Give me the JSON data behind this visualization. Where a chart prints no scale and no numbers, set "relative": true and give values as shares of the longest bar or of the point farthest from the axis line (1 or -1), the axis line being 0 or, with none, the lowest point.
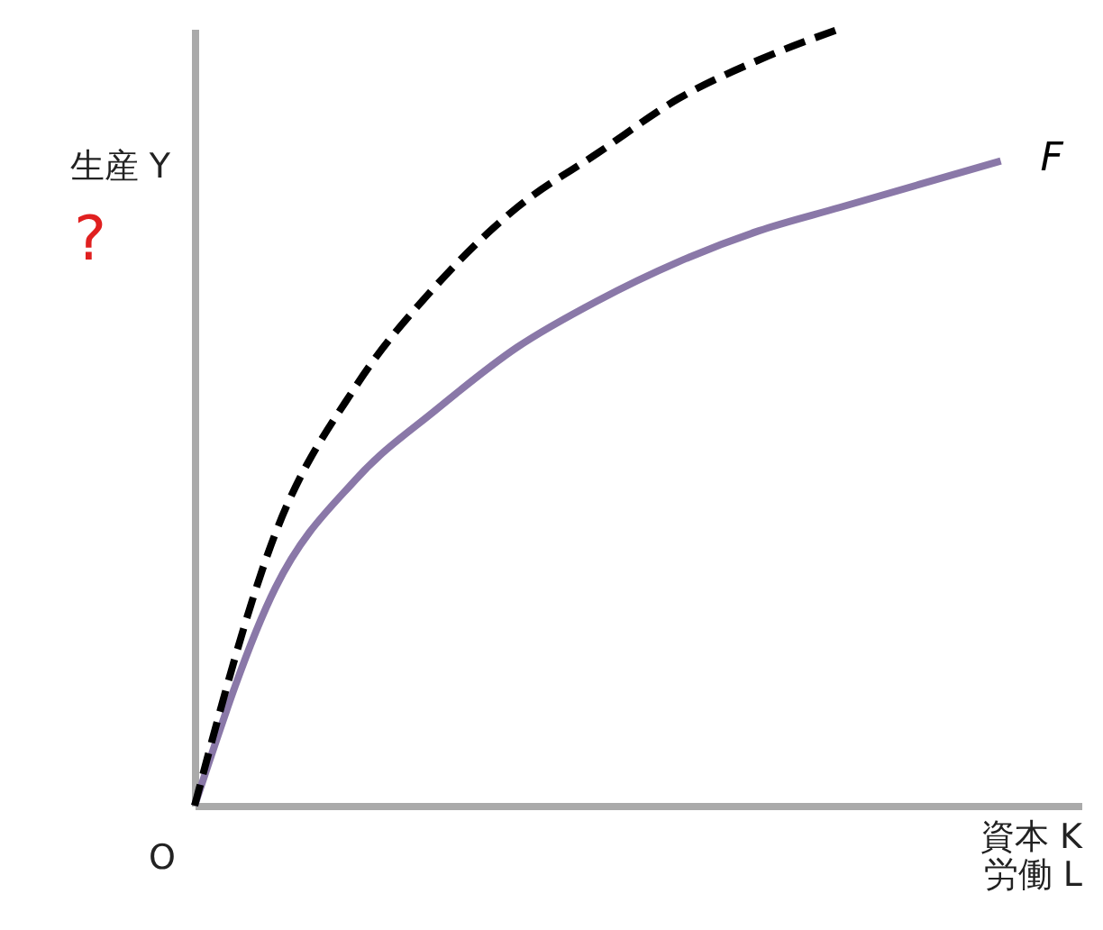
{
  "chart_data": {
    "type": "line",
    "relative": true,
    "ylabel": "生産 Y",
    "xlabel": "資本 K\n労働 L",
    "categories": [
      null,
      null,
      null,
      null,
      null,
      null,
      null,
      null,
      null,
      null,
      null
    ],
    "series": [
      {
        "name": "F",
        "color": "#8a78a8",
        "line_style": "solid",
        "values": [
          0,
          0.28,
          0.42,
          0.51,
          0.59,
          0.65,
          0.7,
          0.74,
          0.77,
          0.8,
          0.83
        ]
      },
      {
        "color": "#000000",
        "line_style": "dashed",
        "values": [
          0,
          0.35,
          0.54,
          0.67,
          0.77,
          0.84,
          0.91,
          0.96,
          1,
          null,
          null
        ]
      }
    ],
    "annotations": [
      "O",
      "?"
    ],
    "grid": false,
    "marker": "none"
  }
}
